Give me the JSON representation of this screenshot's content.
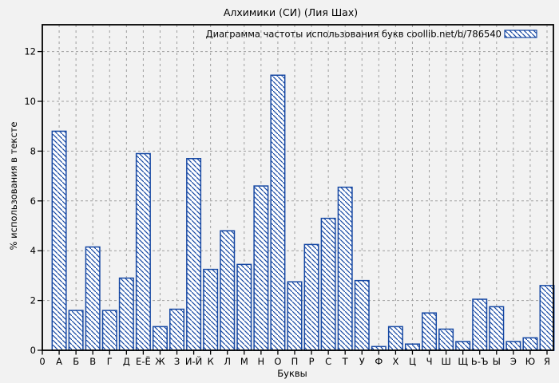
{
  "page": {
    "background_color": "#f2f2f2",
    "text_color": "#000000"
  },
  "chart_data": {
    "type": "bar",
    "title": "Алхимики (СИ) (Лия Шах)",
    "legend": "Диаграмма частоты использования букв coollib.net/b/786540",
    "legend_position": "top-right-inside",
    "legend_swatch": "hatched-bar-sample",
    "xlabel": "Буквы",
    "ylabel": "% использования в тексте",
    "x_origin_label": "0",
    "ylim": [
      0,
      13.1
    ],
    "yticks": [
      0,
      2,
      4,
      6,
      8,
      10,
      12
    ],
    "grid": true,
    "grid_style": "dashed",
    "categories": [
      "А",
      "Б",
      "В",
      "Г",
      "Д",
      "Е-Ё",
      "Ж",
      "З",
      "И-Й",
      "К",
      "Л",
      "М",
      "Н",
      "О",
      "П",
      "Р",
      "С",
      "Т",
      "У",
      "Ф",
      "Х",
      "Ц",
      "Ч",
      "Ш",
      "Щ",
      "Ь-Ъ",
      "Ы",
      "Э",
      "Ю",
      "Я"
    ],
    "values": [
      8.8,
      1.6,
      4.15,
      1.6,
      2.9,
      7.9,
      0.95,
      1.65,
      7.7,
      3.25,
      4.8,
      3.45,
      6.6,
      11.05,
      2.75,
      4.25,
      5.3,
      6.55,
      2.8,
      0.15,
      0.95,
      0.25,
      1.5,
      0.85,
      0.35,
      2.05,
      1.75,
      0.35,
      0.5,
      2.6
    ],
    "bar_style": "diagonal-hatch",
    "colors": {
      "bar_outline": "#1648a3",
      "bar_hatch": "#1648a3",
      "bar_background": "#ffffff",
      "grid": "#9e9e9e",
      "plot_border": "#000000",
      "text": "#000000",
      "canvas_background": "#f2f2f2"
    }
  }
}
